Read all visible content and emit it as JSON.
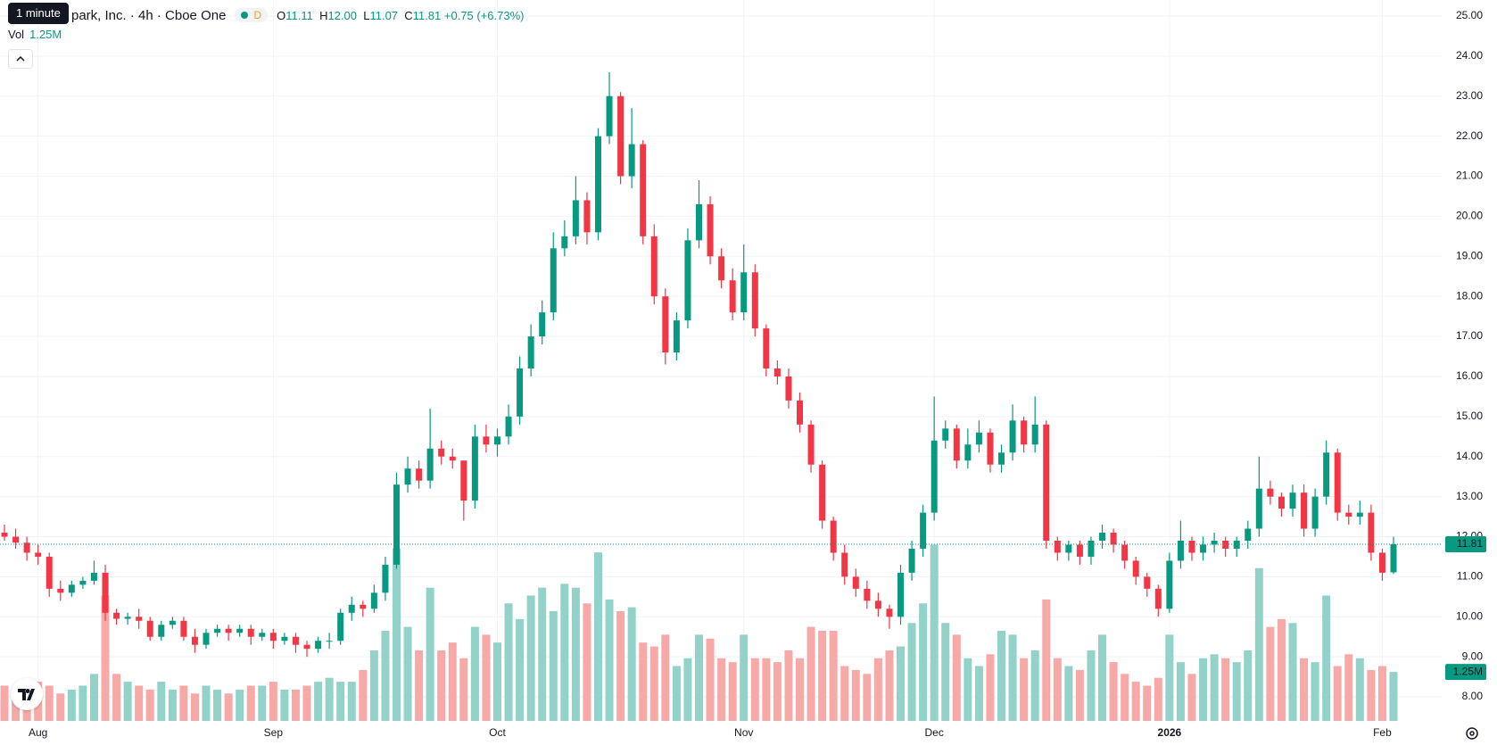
{
  "tooltip": "1 minute",
  "legend": {
    "title": "park, Inc. · 4h · Cboe One",
    "badge": "D",
    "o_label": "O",
    "o": "11.11",
    "h_label": "H",
    "h": "12.00",
    "l_label": "L",
    "l": "11.07",
    "c_label": "C",
    "c": "11.81",
    "change": "+0.75 (+6.73%)",
    "vol_label": "Vol",
    "vol": "1.25M"
  },
  "chart_data": {
    "type": "candlestick",
    "categories": [
      null,
      null,
      null,
      "Aug",
      null,
      null,
      null,
      null,
      null,
      null,
      null,
      null,
      null,
      null,
      null,
      null,
      null,
      null,
      null,
      null,
      null,
      null,
      null,
      null,
      "Sep",
      null,
      null,
      null,
      null,
      null,
      null,
      null,
      null,
      null,
      null,
      null,
      null,
      null,
      null,
      null,
      null,
      null,
      null,
      null,
      "Oct",
      null,
      null,
      null,
      null,
      null,
      null,
      null,
      null,
      null,
      null,
      null,
      null,
      null,
      null,
      null,
      null,
      null,
      null,
      null,
      null,
      null,
      "Nov",
      null,
      null,
      null,
      null,
      null,
      null,
      null,
      null,
      null,
      null,
      null,
      null,
      null,
      null,
      null,
      null,
      "Dec",
      null,
      null,
      null,
      null,
      null,
      null,
      null,
      null,
      null,
      null,
      null,
      null,
      null,
      null,
      null,
      null,
      null,
      null,
      null,
      null,
      "2026",
      null,
      null,
      null,
      null,
      null,
      null,
      null,
      null,
      null,
      null,
      null,
      null,
      null,
      null,
      null,
      null,
      null,
      null,
      "Feb",
      null
    ],
    "open": [
      12.1,
      12.0,
      11.85,
      11.6,
      11.5,
      10.7,
      10.6,
      10.8,
      10.9,
      11.1,
      10.1,
      9.95,
      10.0,
      9.9,
      9.5,
      9.8,
      9.9,
      9.5,
      9.3,
      9.6,
      9.7,
      9.6,
      9.7,
      9.5,
      9.6,
      9.4,
      9.5,
      9.3,
      9.2,
      9.4,
      9.4,
      10.1,
      10.3,
      10.2,
      10.6,
      11.3,
      13.3,
      13.7,
      13.4,
      14.2,
      14.0,
      13.9,
      12.9,
      14.5,
      14.3,
      14.5,
      15.0,
      16.2,
      17.0,
      17.6,
      19.2,
      19.5,
      20.4,
      19.6,
      22.0,
      23.0,
      21.0,
      21.8,
      19.5,
      18.0,
      16.6,
      17.4,
      19.4,
      20.3,
      19.0,
      18.4,
      17.6,
      18.6,
      17.2,
      16.2,
      16.0,
      15.4,
      14.8,
      13.8,
      12.4,
      11.6,
      11.0,
      10.7,
      10.4,
      10.2,
      10.0,
      11.1,
      11.7,
      12.6,
      14.4,
      14.7,
      13.9,
      14.3,
      14.6,
      13.8,
      14.1,
      14.9,
      14.3,
      14.8,
      11.9,
      11.6,
      11.8,
      11.5,
      11.9,
      12.1,
      11.8,
      11.4,
      11.0,
      10.7,
      10.2,
      11.4,
      11.9,
      11.6,
      11.8,
      11.9,
      11.7,
      11.9,
      12.2,
      13.2,
      13.0,
      12.7,
      13.1,
      12.2,
      13.0,
      14.1,
      12.6,
      12.5,
      12.6,
      11.6,
      11.11
    ],
    "high": [
      12.3,
      12.2,
      12.0,
      11.8,
      11.6,
      10.9,
      10.9,
      11.0,
      11.4,
      11.3,
      10.2,
      10.1,
      10.2,
      10.0,
      9.9,
      10.0,
      10.0,
      9.7,
      9.7,
      9.8,
      9.8,
      9.8,
      9.8,
      9.7,
      9.7,
      9.6,
      9.6,
      9.4,
      9.5,
      9.6,
      10.2,
      10.5,
      10.4,
      10.8,
      11.5,
      13.6,
      14.0,
      13.9,
      15.2,
      14.4,
      14.2,
      13.9,
      14.8,
      14.8,
      14.7,
      15.3,
      16.5,
      17.3,
      17.9,
      19.6,
      19.9,
      21.0,
      20.6,
      22.2,
      23.6,
      23.1,
      22.7,
      21.9,
      19.8,
      18.2,
      17.6,
      19.7,
      20.9,
      20.5,
      19.2,
      18.7,
      19.3,
      18.8,
      17.3,
      16.4,
      16.2,
      15.6,
      14.9,
      13.9,
      12.5,
      11.8,
      11.2,
      10.9,
      10.6,
      10.3,
      11.3,
      11.9,
      12.8,
      15.5,
      14.9,
      14.8,
      14.7,
      14.9,
      14.7,
      14.3,
      15.3,
      15.0,
      15.5,
      14.9,
      12.0,
      11.9,
      11.9,
      12.0,
      12.3,
      12.2,
      11.9,
      11.5,
      11.1,
      10.8,
      11.6,
      12.4,
      12.0,
      12.0,
      12.1,
      12.0,
      12.0,
      12.4,
      14.0,
      13.4,
      13.1,
      13.3,
      13.3,
      13.2,
      14.4,
      14.2,
      12.8,
      12.9,
      12.8,
      11.7,
      12.0
    ],
    "low": [
      11.9,
      11.7,
      11.4,
      11.3,
      10.5,
      10.4,
      10.5,
      10.7,
      10.8,
      9.9,
      9.8,
      9.8,
      9.7,
      9.4,
      9.4,
      9.7,
      9.4,
      9.1,
      9.2,
      9.5,
      9.4,
      9.5,
      9.3,
      9.4,
      9.2,
      9.3,
      9.1,
      9.0,
      9.1,
      9.2,
      9.3,
      9.9,
      10.0,
      10.1,
      10.4,
      11.2,
      13.1,
      13.2,
      13.2,
      13.8,
      13.7,
      12.4,
      12.7,
      14.1,
      14.0,
      14.3,
      14.8,
      16.0,
      16.8,
      17.4,
      19.0,
      19.3,
      19.3,
      19.4,
      21.8,
      20.8,
      20.7,
      19.3,
      17.8,
      16.3,
      16.4,
      17.2,
      19.2,
      18.8,
      18.2,
      17.4,
      17.4,
      17.0,
      16.0,
      15.8,
      15.2,
      14.6,
      13.6,
      12.2,
      11.4,
      10.8,
      10.5,
      10.2,
      10.0,
      9.7,
      9.8,
      10.9,
      11.5,
      12.4,
      14.2,
      13.7,
      13.7,
      14.1,
      13.6,
      13.6,
      13.9,
      14.1,
      14.1,
      11.7,
      11.4,
      11.4,
      11.3,
      11.3,
      11.7,
      11.6,
      11.2,
      10.8,
      10.5,
      10.0,
      10.1,
      11.2,
      11.4,
      11.4,
      11.6,
      11.5,
      11.5,
      11.7,
      12.0,
      12.8,
      12.5,
      12.5,
      12.0,
      12.0,
      12.8,
      12.4,
      12.3,
      12.3,
      11.4,
      10.9,
      11.07
    ],
    "close": [
      12.0,
      11.85,
      11.6,
      11.5,
      10.7,
      10.6,
      10.8,
      10.9,
      11.1,
      10.1,
      9.95,
      10.0,
      9.9,
      9.5,
      9.8,
      9.9,
      9.5,
      9.3,
      9.6,
      9.7,
      9.6,
      9.7,
      9.5,
      9.6,
      9.4,
      9.5,
      9.3,
      9.2,
      9.4,
      9.4,
      10.1,
      10.3,
      10.2,
      10.6,
      11.3,
      13.3,
      13.7,
      13.4,
      14.2,
      14.0,
      13.9,
      12.9,
      14.5,
      14.3,
      14.5,
      15.0,
      16.2,
      17.0,
      17.6,
      19.2,
      19.5,
      20.4,
      19.6,
      22.0,
      23.0,
      21.0,
      21.8,
      19.5,
      18.0,
      16.6,
      17.4,
      19.4,
      20.3,
      19.0,
      18.4,
      17.6,
      18.6,
      17.2,
      16.2,
      16.0,
      15.4,
      14.8,
      13.8,
      12.4,
      11.6,
      11.0,
      10.7,
      10.4,
      10.2,
      10.0,
      11.1,
      11.7,
      12.6,
      14.4,
      14.7,
      13.9,
      14.3,
      14.6,
      13.8,
      14.1,
      14.9,
      14.3,
      14.8,
      11.9,
      11.6,
      11.8,
      11.5,
      11.9,
      12.1,
      11.8,
      11.4,
      11.0,
      10.7,
      10.2,
      11.4,
      11.9,
      11.6,
      11.8,
      11.9,
      11.7,
      11.9,
      12.2,
      13.2,
      13.0,
      12.7,
      13.1,
      12.2,
      13.0,
      14.1,
      12.6,
      12.5,
      12.6,
      11.6,
      11.1,
      11.81
    ],
    "volume": [
      0.9,
      0.8,
      0.9,
      1.0,
      0.9,
      0.7,
      0.8,
      0.9,
      1.2,
      3.2,
      1.2,
      1.0,
      0.9,
      0.8,
      1.0,
      0.8,
      0.9,
      0.7,
      0.9,
      0.8,
      0.7,
      0.8,
      0.9,
      0.9,
      1.0,
      0.8,
      0.8,
      0.9,
      1.0,
      1.1,
      1.0,
      1.0,
      1.3,
      1.8,
      2.3,
      4.4,
      2.4,
      1.8,
      3.4,
      1.8,
      2.0,
      1.6,
      2.4,
      2.2,
      2.0,
      3.0,
      2.6,
      3.2,
      3.4,
      2.8,
      3.5,
      3.4,
      3.0,
      4.3,
      3.1,
      2.8,
      2.9,
      2.0,
      1.9,
      2.2,
      1.4,
      1.6,
      2.2,
      2.1,
      1.6,
      1.5,
      2.2,
      1.6,
      1.6,
      1.5,
      1.8,
      1.6,
      2.4,
      2.3,
      2.3,
      1.4,
      1.3,
      1.2,
      1.6,
      1.8,
      1.9,
      2.5,
      3.0,
      4.5,
      2.5,
      2.2,
      1.6,
      1.4,
      1.7,
      2.3,
      2.2,
      1.6,
      1.8,
      3.1,
      1.6,
      1.4,
      1.3,
      1.8,
      2.2,
      1.5,
      1.2,
      1.0,
      0.9,
      1.1,
      2.2,
      1.5,
      1.2,
      1.6,
      1.7,
      1.6,
      1.5,
      1.8,
      3.9,
      2.4,
      2.6,
      2.5,
      1.6,
      1.5,
      3.2,
      1.4,
      1.7,
      1.6,
      1.3,
      1.4,
      1.25
    ],
    "up_color": "#089981",
    "down_color": "#f23645",
    "up_volume_color": "#92d2c8",
    "down_volume_color": "#f7a9a7",
    "ylim": [
      7.4,
      25.4
    ],
    "yticks": [
      {
        "value": 8,
        "label": "8.00"
      },
      {
        "value": 9,
        "label": "9.00"
      },
      {
        "value": 10,
        "label": "10.00"
      },
      {
        "value": 11,
        "label": "11.00"
      },
      {
        "value": 12,
        "label": "12.00"
      },
      {
        "value": 13,
        "label": "13.00"
      },
      {
        "value": 14,
        "label": "14.00"
      },
      {
        "value": 15,
        "label": "15.00"
      },
      {
        "value": 16,
        "label": "16.00"
      },
      {
        "value": 17,
        "label": "17.00"
      },
      {
        "value": 18,
        "label": "18.00"
      },
      {
        "value": 19,
        "label": "19.00"
      },
      {
        "value": 20,
        "label": "20.00"
      },
      {
        "value": 21,
        "label": "21.00"
      },
      {
        "value": 22,
        "label": "22.00"
      },
      {
        "value": 23,
        "label": "23.00"
      },
      {
        "value": 24,
        "label": "24.00"
      },
      {
        "value": 25,
        "label": "25.00"
      }
    ],
    "y2lim": [
      0,
      18.4
    ],
    "grid": true,
    "price_marker": "11.81",
    "volume_marker": "1.25M"
  }
}
